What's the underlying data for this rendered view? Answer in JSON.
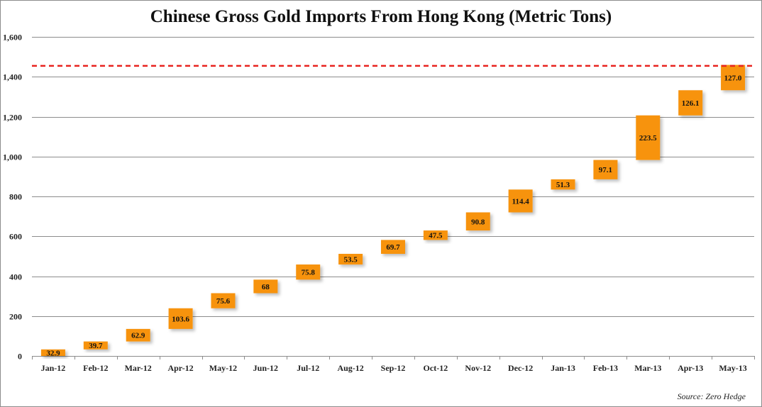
{
  "chart_data": {
    "type": "bar",
    "subtype": "waterfall",
    "title": "Chinese Gross Gold Imports From Hong Kong (Metric Tons)",
    "xlabel": "",
    "ylabel": "",
    "source": "Source: Zero Hedge",
    "categories": [
      "Jan-12",
      "Feb-12",
      "Mar-12",
      "Apr-12",
      "May-12",
      "Jun-12",
      "Jul-12",
      "Aug-12",
      "Sep-12",
      "Oct-12",
      "Nov-12",
      "Dec-12",
      "Jan-13",
      "Feb-13",
      "Mar-13",
      "Apr-13",
      "May-13"
    ],
    "values": [
      32.9,
      39.7,
      62.9,
      103.6,
      75.6,
      68,
      75.8,
      53.5,
      69.7,
      47.5,
      90.8,
      114.4,
      51.3,
      97.1,
      223.5,
      126.1,
      127.0
    ],
    "value_labels": [
      "32.9",
      "39.7",
      "62.9",
      "103.6",
      "75.6",
      "68",
      "75.8",
      "53.5",
      "69.7",
      "47.5",
      "90.8",
      "114.4",
      "51.3",
      "97.1",
      "223.5",
      "126.1",
      "127.0"
    ],
    "yticks": [
      0,
      200,
      400,
      600,
      800,
      1000,
      1200,
      1400,
      1600
    ],
    "ytick_labels": [
      "0",
      "200",
      "400",
      "600",
      "800",
      "1,000",
      "1,200",
      "1,400",
      "1,600"
    ],
    "ylim": [
      0,
      1600
    ],
    "reference_line": {
      "value": 1454.8,
      "style": "dashed",
      "color": "#e8231e"
    },
    "grid": true,
    "legend": "none",
    "colors": {
      "bar": "#f7930f",
      "grid": "#8c8c8c",
      "axis": "#8c8c8c"
    }
  }
}
